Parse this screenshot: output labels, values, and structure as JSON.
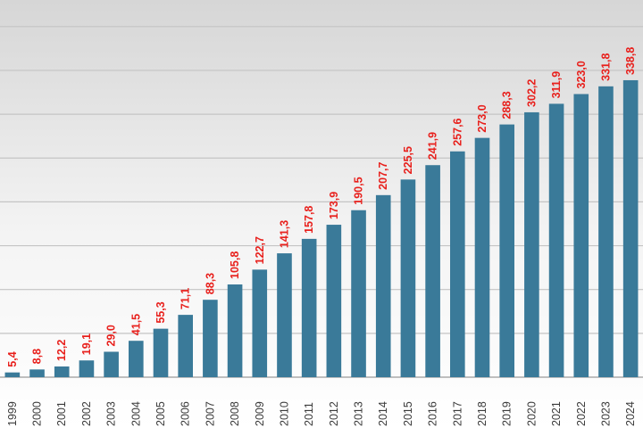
{
  "chart_data": {
    "type": "bar",
    "title": "",
    "xlabel": "",
    "ylabel": "",
    "categories": [
      "1999",
      "2000",
      "2001",
      "2002",
      "2003",
      "2004",
      "2005",
      "2006",
      "2007",
      "2008",
      "2009",
      "2010",
      "2011",
      "2012",
      "2013",
      "2014",
      "2015",
      "2016",
      "2017",
      "2018",
      "2019",
      "2020",
      "2021",
      "2022",
      "2023",
      "2024"
    ],
    "values": [
      5.4,
      8.8,
      12.2,
      19.1,
      29.0,
      41.5,
      55.3,
      71.1,
      88.3,
      105.8,
      122.7,
      141.3,
      157.8,
      173.9,
      190.5,
      207.7,
      225.5,
      241.9,
      257.6,
      273.0,
      288.3,
      302.2,
      311.9,
      323.0,
      331.8,
      338.8
    ],
    "value_labels": [
      "5,4",
      "8,8",
      "12,2",
      "19,1",
      "29,0",
      "41,5",
      "55,3",
      "71,1",
      "88,3",
      "105,8",
      "122,7",
      "141,3",
      "157,8",
      "173,9",
      "190,5",
      "207,7",
      "225,5",
      "241,9",
      "257,6",
      "273,0",
      "288,3",
      "302,2",
      "311,9",
      "323,0",
      "331,8",
      "338,8"
    ],
    "ylim": [
      0,
      412
    ],
    "grid": true,
    "legend": "none",
    "colors": {
      "bar": "#3a7a99",
      "value_label": "#e8201c",
      "background_top": "#d9d9d9",
      "background_bottom": "#ffffff",
      "grid": "#c4c4c4"
    }
  }
}
